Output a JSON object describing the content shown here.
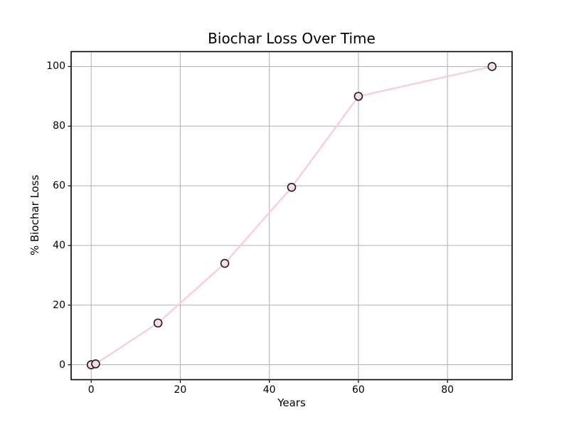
{
  "figure": {
    "background_color": "#ffffff",
    "text_color": "#000000"
  },
  "chart_data": {
    "type": "line",
    "title": "Biochar Loss Over Time",
    "xlabel": "Years",
    "ylabel": "% Biochar Loss",
    "x": [
      0,
      1,
      15,
      30,
      45,
      60,
      90
    ],
    "y": [
      0,
      0.3,
      14,
      34,
      59.5,
      90,
      100
    ],
    "xticks": [
      0,
      20,
      40,
      60,
      80
    ],
    "yticks": [
      0,
      20,
      40,
      60,
      80,
      100
    ],
    "xlim": [
      -4.5,
      94.5
    ],
    "ylim": [
      -5,
      105
    ],
    "grid": true,
    "legend_position": "none",
    "line_color": "#f8d0d9",
    "marker_face_color": "#fadde3",
    "marker_edge_color": "#1c1c1c",
    "grid_color": "#b0b0b0",
    "spine_color": "#000000",
    "tick_color": "#000000"
  }
}
